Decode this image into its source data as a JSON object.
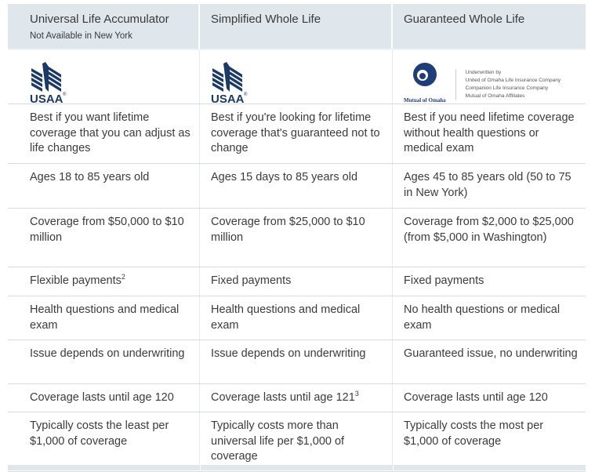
{
  "columns": [
    {
      "title": "Universal Life Accumulator",
      "subtitle": "Not Available in New York",
      "logo": "USAA"
    },
    {
      "title": "Simplified Whole Life",
      "logo": "USAA"
    },
    {
      "title": "Guaranteed Whole Life",
      "logo": "Mutual of Omaha"
    }
  ],
  "mutual_of_omaha": {
    "wordmark": "Mutual of Omaha",
    "underwritten": [
      "Underwritten by",
      "United of Omaha Life Insurance Company",
      "Companion Life Insurance Company",
      "Mutual of Omaha Affiliates"
    ]
  },
  "rows": [
    {
      "cells": [
        {
          "text": "Best if you want lifetime coverage that you can adjust as life changes"
        },
        {
          "text": "Best if you're looking for lifetime coverage that's guaranteed not to change"
        },
        {
          "text": "Best if you need lifetime coverage without health questions or medical exam"
        }
      ]
    },
    {
      "cells": [
        {
          "text": "Ages 18 to 85 years old"
        },
        {
          "text": "Ages 15 days to 85 years old"
        },
        {
          "text": "Ages 45 to 85 years old (50 to 75 in New York)"
        }
      ]
    },
    {
      "cells": [
        {
          "text": "Coverage from $50,000 to $10 million"
        },
        {
          "text": "Coverage from $25,000 to $10 million"
        },
        {
          "text": "Coverage from $2,000 to $25,000 (from $5,000 in Washington)"
        }
      ]
    },
    {
      "cells": [
        {
          "text": "Flexible payments",
          "sup": "2"
        },
        {
          "text": "Fixed payments"
        },
        {
          "text": "Fixed payments"
        }
      ]
    },
    {
      "cells": [
        {
          "text": "Health questions and medical exam"
        },
        {
          "text": "Health questions and medical exam"
        },
        {
          "text": "No health questions or medical exam"
        }
      ]
    },
    {
      "cells": [
        {
          "text": "Issue depends on underwriting"
        },
        {
          "text": "Issue depends on underwriting"
        },
        {
          "text": "Guaranteed issue, no underwriting"
        }
      ]
    },
    {
      "cells": [
        {
          "text": "Coverage lasts until age 120"
        },
        {
          "text": "Coverage lasts until age 121",
          "sup": "3"
        },
        {
          "text": "Coverage lasts until age 120"
        }
      ]
    },
    {
      "cells": [
        {
          "text": "Typically costs the least per $1,000 of coverage"
        },
        {
          "text": "Typically costs more than universal life per $1,000 of coverage"
        },
        {
          "text": "Typically costs the most per $1,000 of coverage"
        }
      ]
    }
  ],
  "colors": {
    "header_bg": "#dfe6ec",
    "usaa_navy": "#1c3a66",
    "omaha_navy": "#1f3d78"
  }
}
